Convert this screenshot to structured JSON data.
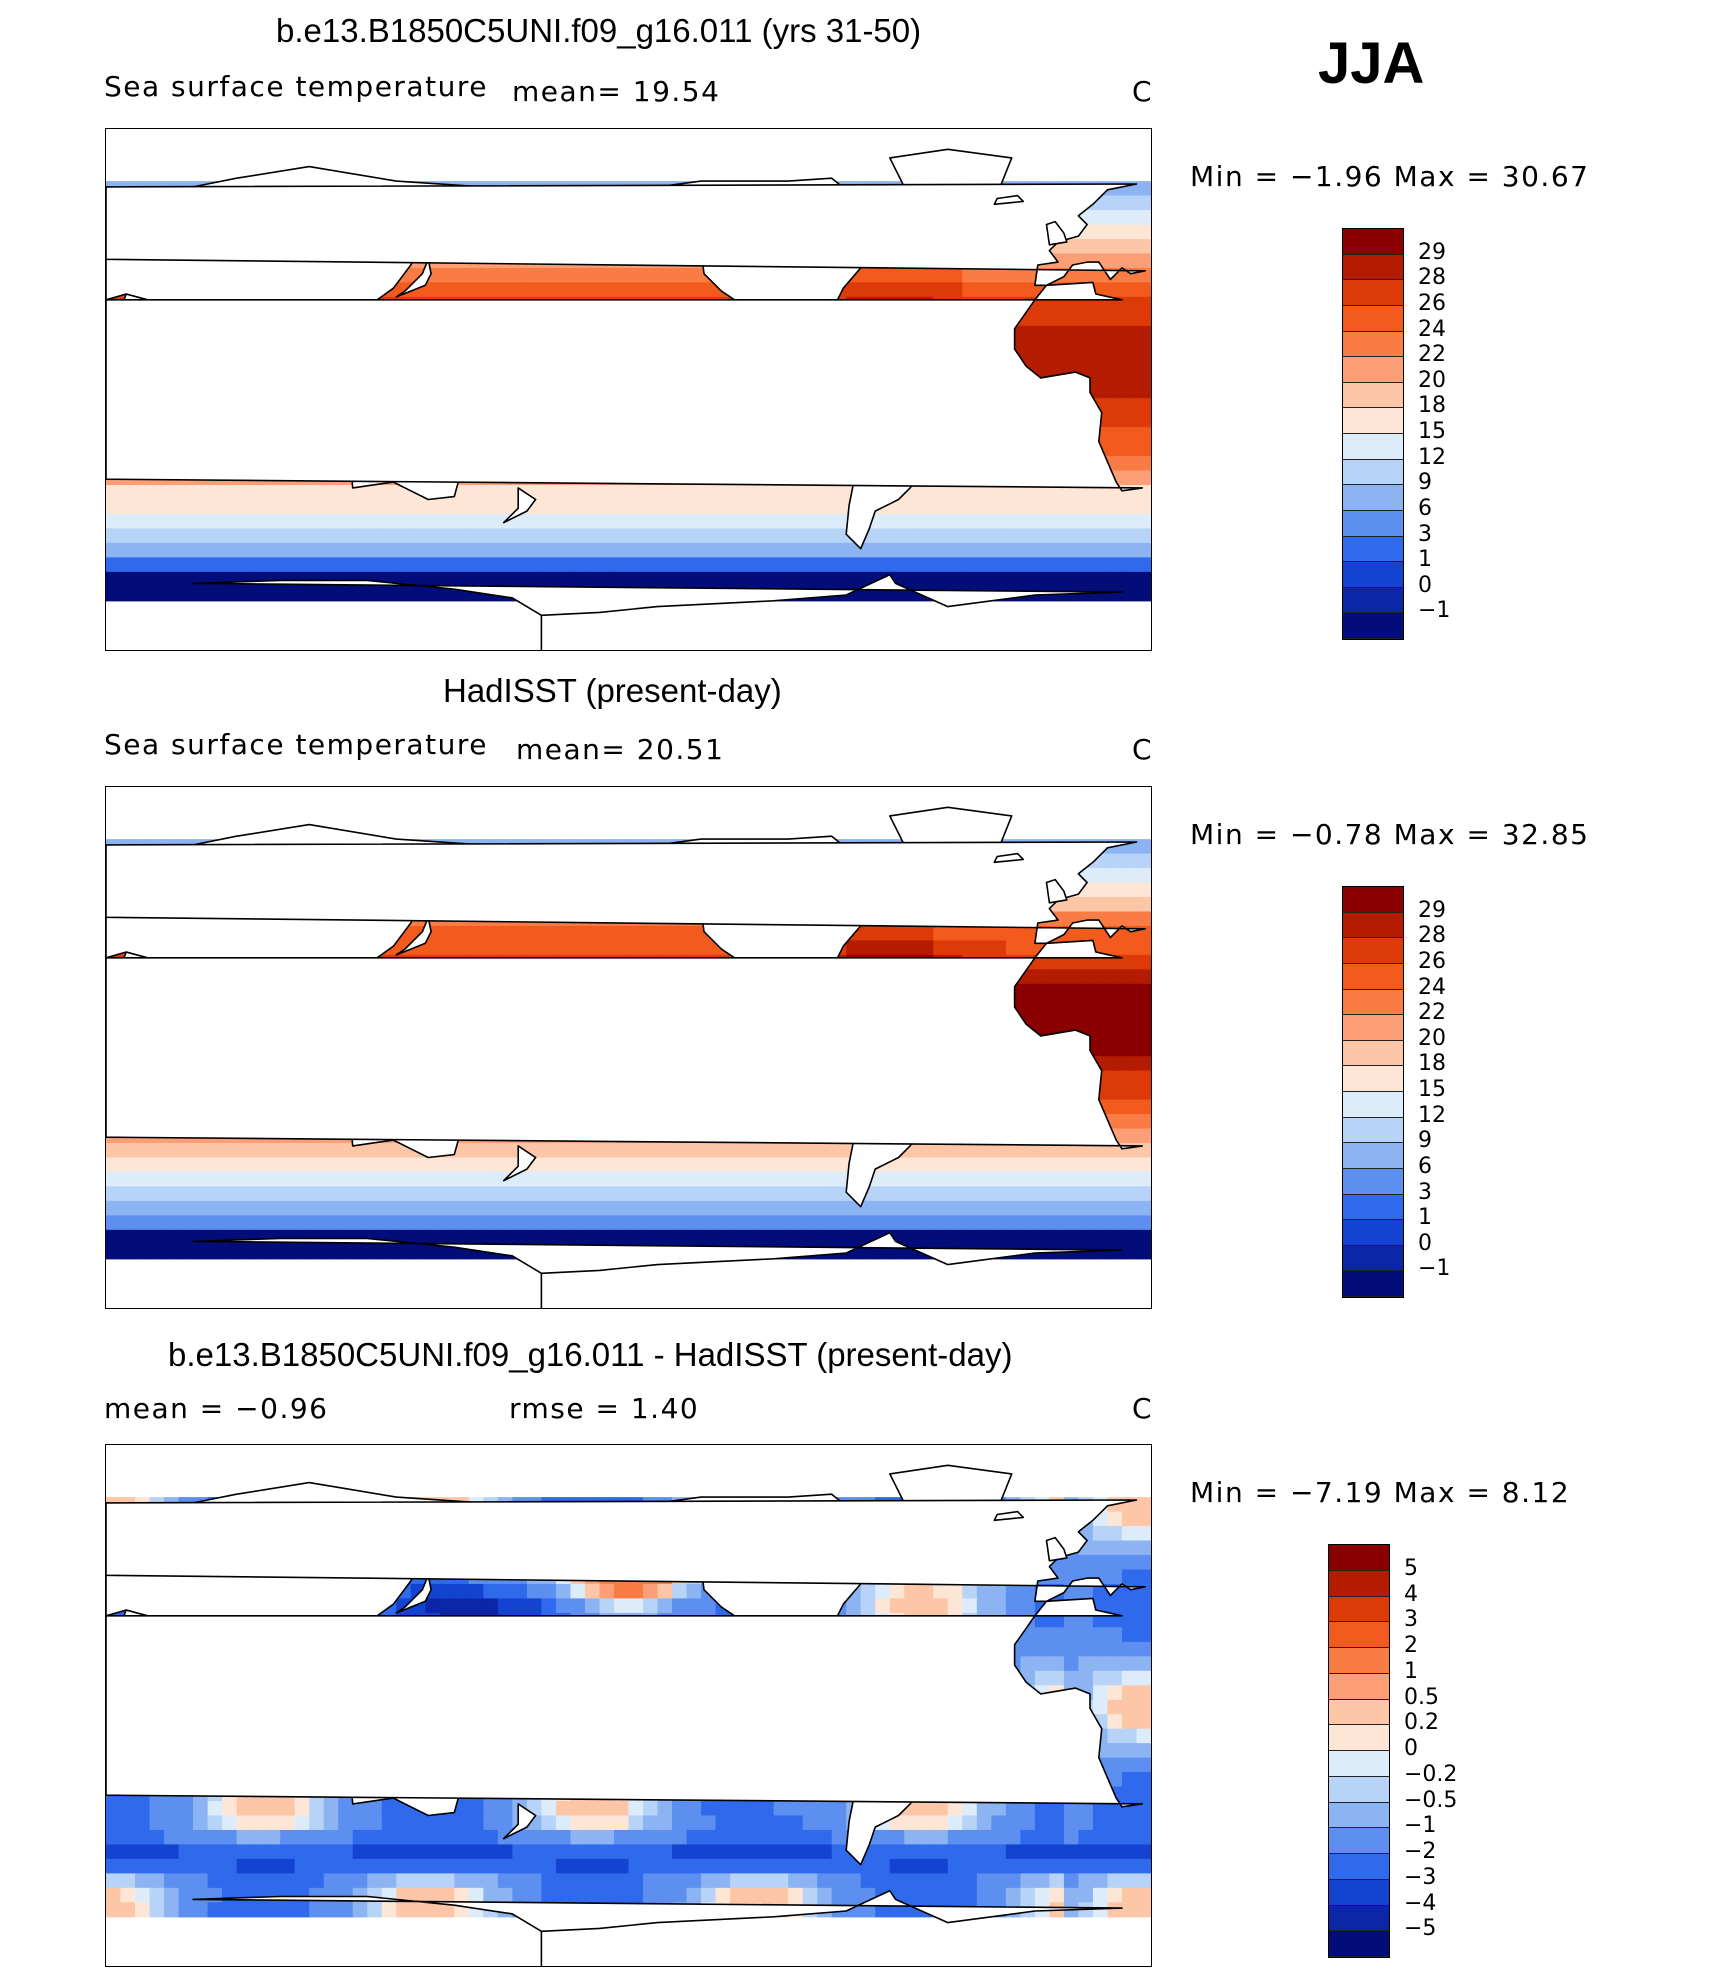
{
  "season": "JJA",
  "panels": [
    {
      "title": "b.e13.B1850C5UNI.f09_g16.011 (yrs 31-50)",
      "left_label": "Sea surface temperature",
      "stat1": "mean=   19.54",
      "stat2": "",
      "units": "C",
      "minmax": "Min =   −1.96 Max =   30.67",
      "colorbar": {
        "labels": [
          "29",
          "28",
          "26",
          "24",
          "22",
          "20",
          "18",
          "15",
          "12",
          "9",
          "6",
          "3",
          "1",
          "0",
          "−1"
        ],
        "colors": [
          "#8a0000",
          "#b31c00",
          "#dc3b08",
          "#f25a1e",
          "#fa7c45",
          "#fc9f76",
          "#fdc6a6",
          "#fee6d6",
          "#dcecfb",
          "#b7d3f7",
          "#8cb4f2",
          "#5c8ff0",
          "#2f69ec",
          "#1443d2",
          "#0b27a8",
          "#030d7a"
        ]
      },
      "field": "sst_model"
    },
    {
      "title": "HadISST (present-day)",
      "left_label": "Sea surface temperature",
      "stat1": "mean=   20.51",
      "stat2": "",
      "units": "C",
      "minmax": "Min =   −0.78 Max =   32.85",
      "colorbar": {
        "labels": [
          "29",
          "28",
          "26",
          "24",
          "22",
          "20",
          "18",
          "15",
          "12",
          "9",
          "6",
          "3",
          "1",
          "0",
          "−1"
        ],
        "colors": [
          "#8a0000",
          "#b31c00",
          "#dc3b08",
          "#f25a1e",
          "#fa7c45",
          "#fc9f76",
          "#fdc6a6",
          "#fee6d6",
          "#dcecfb",
          "#b7d3f7",
          "#8cb4f2",
          "#5c8ff0",
          "#2f69ec",
          "#1443d2",
          "#0b27a8",
          "#030d7a"
        ]
      },
      "field": "sst_obs"
    },
    {
      "title": "b.e13.B1850C5UNI.f09_g16.011 - HadISST (present-day)",
      "left_label": "mean =   −0.96",
      "stat1": "",
      "stat2": "rmse =    1.40",
      "units": "C",
      "minmax": "Min =   −7.19 Max =    8.12",
      "colorbar": {
        "labels": [
          "5",
          "4",
          "3",
          "2",
          "1",
          "0.5",
          "0.2",
          "0",
          "−0.2",
          "−0.5",
          "−1",
          "−2",
          "−3",
          "−4",
          "−5"
        ],
        "colors": [
          "#8a0000",
          "#b31c00",
          "#dc3b08",
          "#f25a1e",
          "#fa7c45",
          "#fc9f76",
          "#fdc6a6",
          "#fee6d6",
          "#dcecfb",
          "#b7d3f7",
          "#8cb4f2",
          "#5c8ff0",
          "#2f69ec",
          "#1443d2",
          "#0b27a8",
          "#030d7a"
        ]
      },
      "field": "diff"
    }
  ]
}
